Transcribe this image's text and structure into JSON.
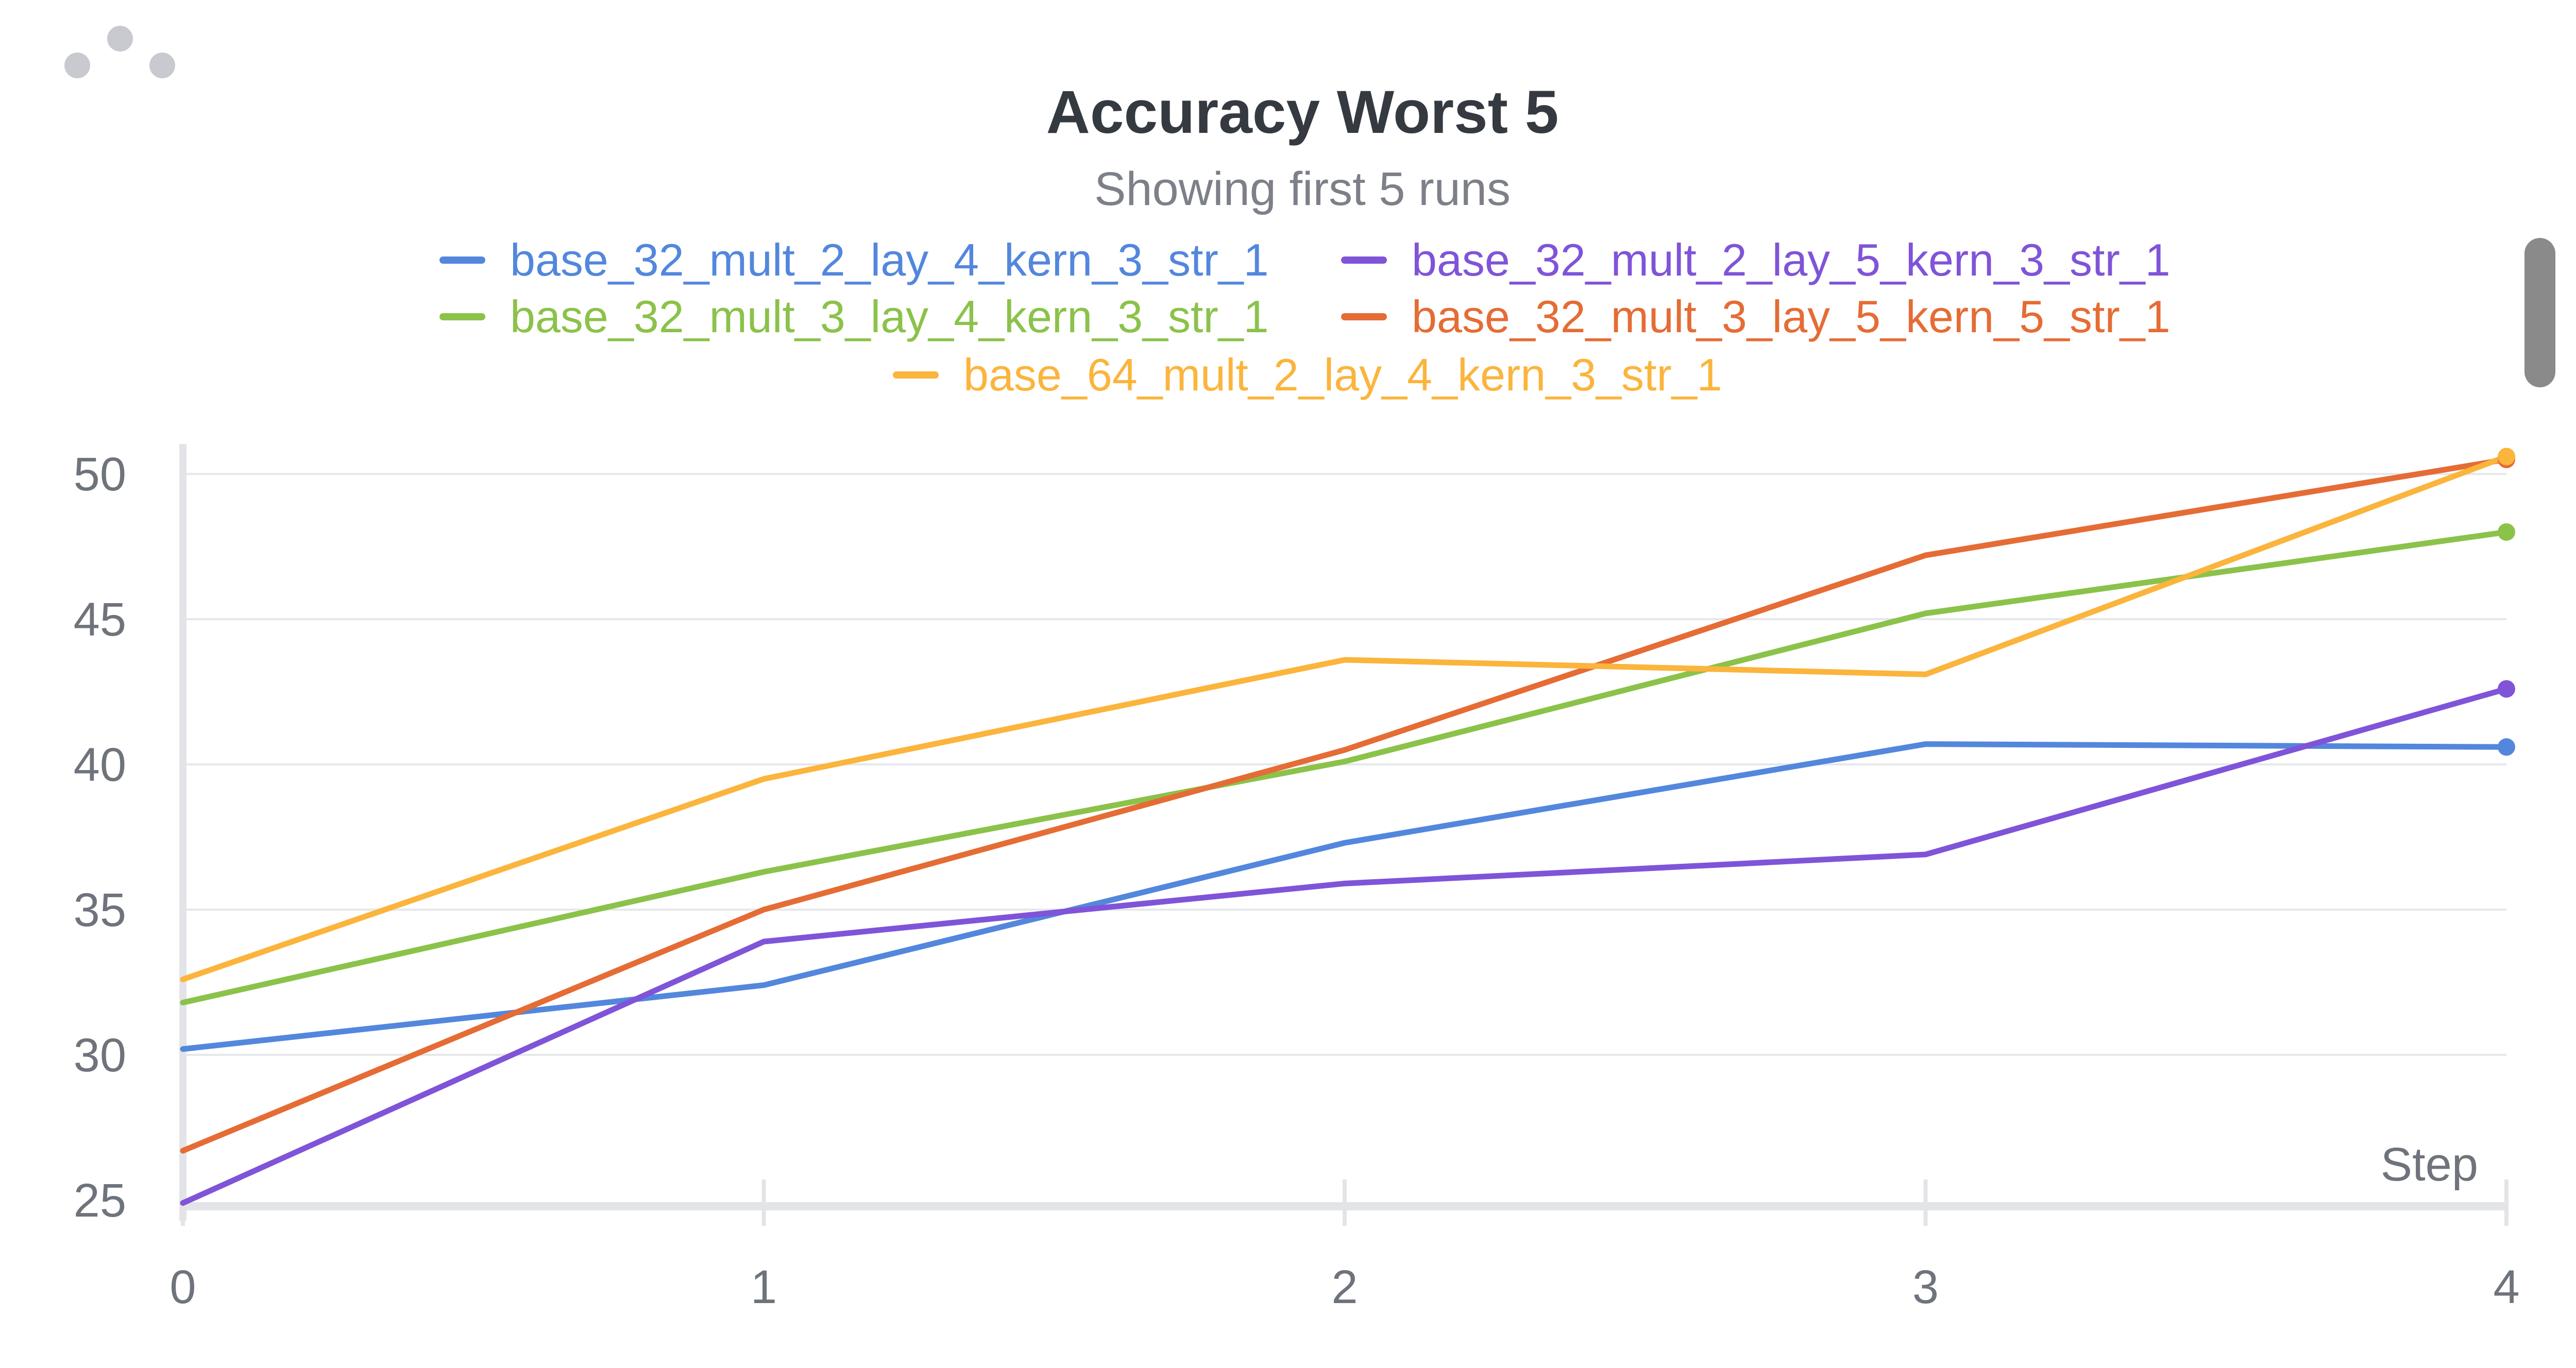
{
  "chart_data": {
    "type": "line",
    "title": "Accuracy Worst 5",
    "subtitle": "Showing first 5 runs",
    "xlabel": "Step",
    "ylabel": "",
    "x": [
      0,
      1,
      2,
      3,
      4
    ],
    "xlim": [
      0,
      4
    ],
    "ylim": [
      25,
      50.5
    ],
    "x_ticks": [
      0,
      1,
      2,
      3,
      4
    ],
    "y_ticks": [
      25,
      30,
      35,
      40,
      45,
      50
    ],
    "grid": true,
    "legend_position": "top",
    "series": [
      {
        "name": "base_32_mult_2_lay_4_kern_3_str_1",
        "color": "#5387dd",
        "values": [
          30.2,
          32.4,
          37.3,
          40.7,
          40.6
        ]
      },
      {
        "name": "base_32_mult_2_lay_5_kern_3_str_1",
        "color": "#7f54d8",
        "values": [
          24.9,
          33.9,
          35.9,
          36.9,
          42.6
        ]
      },
      {
        "name": "base_32_mult_3_lay_4_kern_3_str_1",
        "color": "#8bc24a",
        "values": [
          31.8,
          36.3,
          40.1,
          45.2,
          48.0
        ]
      },
      {
        "name": "base_32_mult_3_lay_5_kern_5_str_1",
        "color": "#e56c35",
        "values": [
          26.7,
          35.0,
          40.5,
          47.2,
          50.5
        ]
      },
      {
        "name": "base_64_mult_2_lay_4_kern_3_str_1",
        "color": "#fbb43c",
        "values": [
          32.6,
          39.5,
          43.6,
          43.1,
          50.6
        ]
      }
    ]
  }
}
